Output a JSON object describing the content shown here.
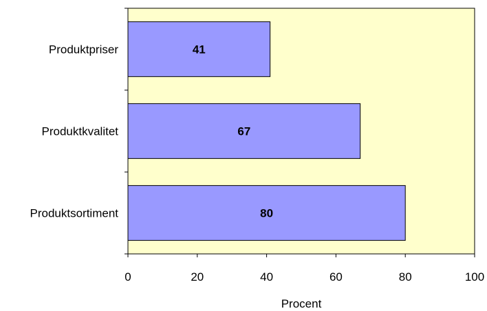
{
  "chart_data": {
    "type": "bar",
    "orientation": "horizontal",
    "categories": [
      "Produktpriser",
      "Produktkvalitet",
      "Produktsortiment"
    ],
    "values": [
      41,
      67,
      80
    ],
    "data_labels": [
      "41",
      "67",
      "80"
    ],
    "xlabel": "Procent",
    "ylabel": "",
    "xlim": [
      0,
      100
    ],
    "xticks": [
      "0",
      "20",
      "40",
      "60",
      "80",
      "100"
    ],
    "grid": false,
    "legend": "none",
    "colors": {
      "plot_background": "#ffffcc",
      "bar_fill": "#9999ff",
      "bar_stroke": "#000000",
      "axis": "#000000"
    }
  }
}
